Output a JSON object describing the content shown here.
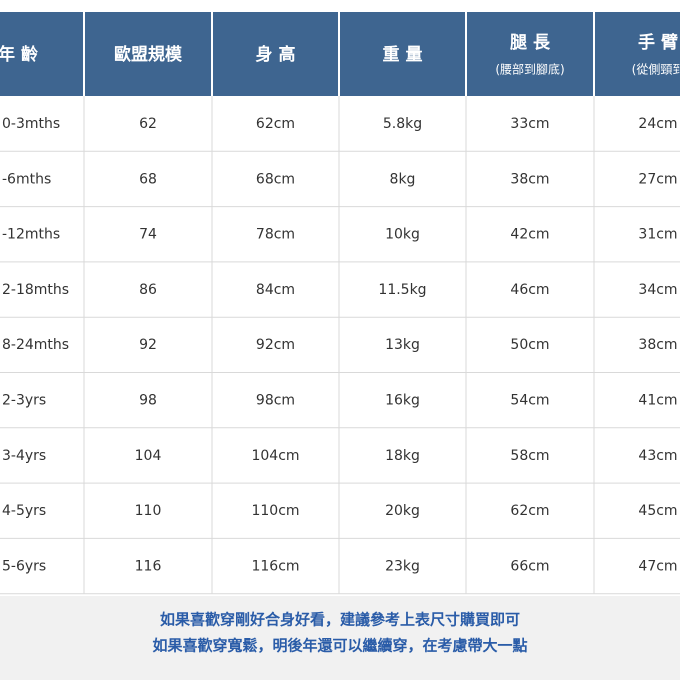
{
  "table": {
    "header": [
      {
        "title": "年 齡"
      },
      {
        "title": "歐盟規模"
      },
      {
        "title": "身 高"
      },
      {
        "title": "重 量"
      },
      {
        "title": "腿 長",
        "sub": "(腰部到腳底)"
      },
      {
        "title": "手 臂",
        "sub": "(從側頸到"
      }
    ],
    "rows": [
      [
        "0-3mths",
        "62",
        "62cm",
        "5.8kg",
        "33cm",
        "24cm"
      ],
      [
        "-6mths",
        "68",
        "68cm",
        "8kg",
        "38cm",
        "27cm"
      ],
      [
        "-12mths",
        "74",
        "78cm",
        "10kg",
        "42cm",
        "31cm"
      ],
      [
        "2-18mths",
        "86",
        "84cm",
        "11.5kg",
        "46cm",
        "34cm"
      ],
      [
        "8-24mths",
        "92",
        "92cm",
        "13kg",
        "50cm",
        "38cm"
      ],
      [
        "2-3yrs",
        "98",
        "98cm",
        "16kg",
        "54cm",
        "41cm"
      ],
      [
        "3-4yrs",
        "104",
        "104cm",
        "18kg",
        "58cm",
        "43cm"
      ],
      [
        "4-5yrs",
        "110",
        "110cm",
        "20kg",
        "62cm",
        "45cm"
      ],
      [
        "5-6yrs",
        "116",
        "116cm",
        "23kg",
        "66cm",
        "47cm"
      ]
    ]
  },
  "footer": {
    "lines": [
      "如果喜歡穿剛好合身好看，建議參考上表尺寸購買即可",
      "如果喜歡穿寬鬆，明後年還可以繼續穿，在考慮帶大一點"
    ]
  }
}
